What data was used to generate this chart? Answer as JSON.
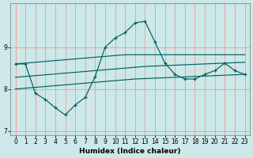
{
  "xlabel": "Humidex (Indice chaleur)",
  "background_color": "#cce8e8",
  "grid_color": "#f0a0a0",
  "line_color": "#006060",
  "x": [
    0,
    1,
    2,
    3,
    4,
    5,
    6,
    7,
    8,
    9,
    10,
    11,
    12,
    13,
    14,
    15,
    16,
    17,
    18,
    19,
    20,
    21,
    22,
    23
  ],
  "y_main": [
    8.6,
    8.6,
    7.9,
    7.75,
    7.55,
    7.38,
    7.62,
    7.8,
    8.3,
    9.0,
    9.22,
    9.35,
    9.58,
    9.62,
    9.12,
    8.62,
    8.35,
    8.24,
    8.24,
    8.35,
    8.44,
    8.62,
    8.44,
    8.35
  ],
  "y_upper": [
    8.6,
    8.62,
    8.64,
    8.66,
    8.68,
    8.7,
    8.72,
    8.74,
    8.76,
    8.78,
    8.8,
    8.82,
    8.82,
    8.82,
    8.82,
    8.82,
    8.82,
    8.82,
    8.82,
    8.82,
    8.82,
    8.82,
    8.82,
    8.82
  ],
  "y_mid": [
    8.28,
    8.3,
    8.32,
    8.34,
    8.36,
    8.38,
    8.4,
    8.42,
    8.44,
    8.46,
    8.48,
    8.5,
    8.52,
    8.54,
    8.55,
    8.56,
    8.57,
    8.58,
    8.59,
    8.6,
    8.61,
    8.62,
    8.63,
    8.64
  ],
  "y_lower": [
    8.0,
    8.02,
    8.04,
    8.06,
    8.08,
    8.1,
    8.12,
    8.14,
    8.16,
    8.18,
    8.2,
    8.22,
    8.24,
    8.25,
    8.26,
    8.27,
    8.28,
    8.29,
    8.3,
    8.31,
    8.32,
    8.33,
    8.34,
    8.35
  ],
  "ylim": [
    6.9,
    10.05
  ],
  "xlim": [
    -0.5,
    23.5
  ],
  "yticks": [
    7,
    8,
    9
  ],
  "xticks": [
    0,
    1,
    2,
    3,
    4,
    5,
    6,
    7,
    8,
    9,
    10,
    11,
    12,
    13,
    14,
    15,
    16,
    17,
    18,
    19,
    20,
    21,
    22,
    23
  ]
}
